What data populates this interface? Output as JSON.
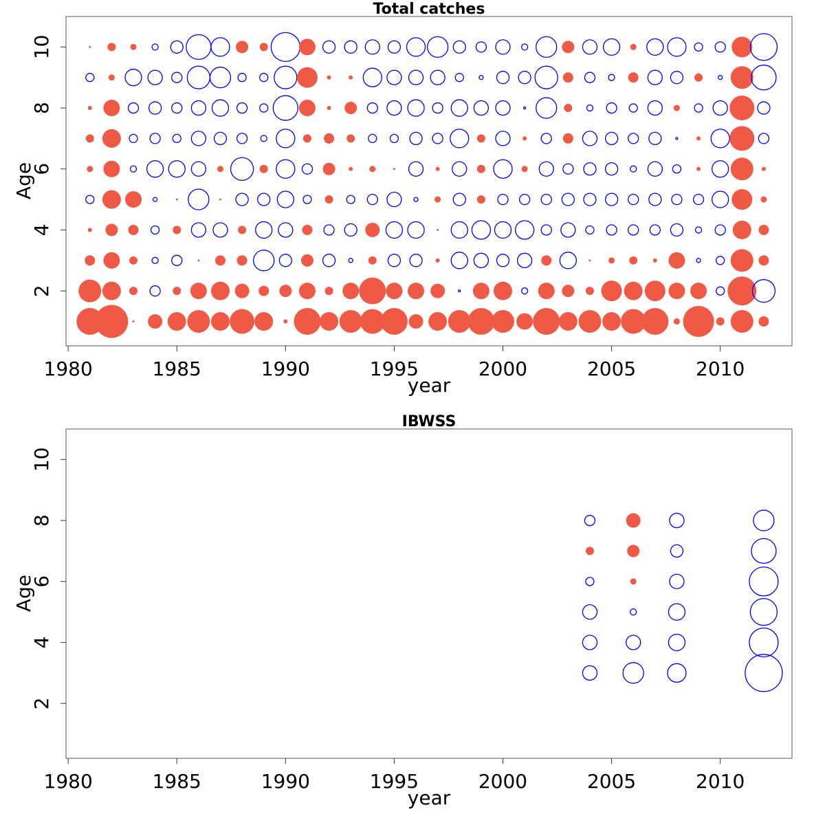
{
  "chart_data": [
    {
      "type": "bubble",
      "title": "Total catches",
      "xlabel": "year",
      "ylabel": "Age",
      "xlim": [
        1979.9,
        2013.3
      ],
      "ylim": [
        0.2,
        11.0
      ],
      "x_ticks": [
        1980,
        1985,
        1990,
        1995,
        2000,
        2005,
        2010
      ],
      "y_ticks": [
        2,
        4,
        6,
        8,
        10
      ],
      "grid": false,
      "positive_color": "#ee5a45",
      "negative_color": "#0000ff",
      "ages": [
        1,
        2,
        3,
        4,
        5,
        6,
        7,
        8,
        9,
        10
      ],
      "years": [
        1981,
        1982,
        1983,
        1984,
        1985,
        1986,
        1987,
        1988,
        1989,
        1990,
        1991,
        1992,
        1993,
        1994,
        1995,
        1996,
        1997,
        1998,
        1999,
        2000,
        2001,
        2002,
        2003,
        2004,
        2005,
        2006,
        2007,
        2008,
        2009,
        2010,
        2011,
        2012
      ],
      "residuals": [
        [
          1.3,
          1.1,
          0.5,
          0.2,
          -0.4,
          0.3,
          0.4,
          0.2,
          -0.4,
          0.1
        ],
        [
          1.6,
          0.9,
          0.8,
          0.6,
          0.9,
          0.8,
          0.9,
          0.8,
          0.3,
          0.4
        ],
        [
          0.1,
          0.4,
          0.4,
          0.5,
          0.8,
          -0.3,
          -0.4,
          -0.5,
          -0.8,
          0.3
        ],
        [
          0.7,
          -0.5,
          -0.3,
          -0.4,
          -0.2,
          -0.8,
          -0.5,
          -0.6,
          -0.7,
          -0.3
        ],
        [
          0.9,
          0.4,
          -0.5,
          0.4,
          0.1,
          -0.8,
          -0.4,
          -0.5,
          -0.5,
          -0.6
        ],
        [
          1.1,
          0.8,
          0.1,
          -0.7,
          -1.0,
          -0.7,
          -0.7,
          -0.7,
          -1.1,
          -1.2
        ],
        [
          0.9,
          0.9,
          0.5,
          -0.7,
          0.1,
          0.3,
          -0.6,
          -0.8,
          -1.0,
          -0.9
        ],
        [
          1.2,
          0.7,
          0.5,
          0.4,
          -0.6,
          -1.1,
          -0.5,
          -0.5,
          -0.4,
          0.6
        ],
        [
          0.9,
          0.5,
          -1.0,
          -0.8,
          -0.6,
          0.4,
          -0.3,
          -0.4,
          -0.4,
          0.4
        ],
        [
          0.2,
          0.6,
          -0.6,
          -0.7,
          -0.8,
          -0.9,
          -0.9,
          -1.2,
          -1.1,
          -1.4
        ],
        [
          1.3,
          0.8,
          0.6,
          0.5,
          -0.4,
          -0.5,
          0.4,
          0.8,
          1.0,
          0.8
        ],
        [
          0.9,
          0.4,
          -0.6,
          -0.5,
          0.4,
          0.6,
          0.5,
          0.2,
          0.2,
          -0.6
        ],
        [
          1.1,
          0.8,
          -0.2,
          -0.6,
          -0.4,
          0.2,
          0.4,
          0.6,
          0.2,
          -0.6
        ],
        [
          1.2,
          1.3,
          0.4,
          0.7,
          -0.5,
          0.3,
          -0.4,
          -0.5,
          -0.9,
          -0.7
        ],
        [
          1.3,
          0.8,
          -0.6,
          -0.8,
          -0.7,
          0.1,
          -0.4,
          -0.7,
          -0.7,
          -0.6
        ],
        [
          0.7,
          0.8,
          -0.6,
          -0.8,
          -0.2,
          -0.7,
          -0.6,
          -0.8,
          -0.7,
          -0.9
        ],
        [
          0.9,
          0.7,
          0.2,
          0.1,
          0.3,
          0.2,
          -0.5,
          -0.5,
          -0.7,
          -1.0
        ],
        [
          1.1,
          -0.1,
          -0.8,
          -0.8,
          -0.6,
          -0.7,
          -0.9,
          -0.8,
          -0.4,
          -0.6
        ],
        [
          1.3,
          0.8,
          -0.7,
          -0.9,
          0.4,
          0.4,
          0.4,
          -0.7,
          -0.2,
          -0.5
        ],
        [
          1.1,
          0.9,
          -0.6,
          -0.8,
          -0.5,
          -0.9,
          -0.7,
          -0.7,
          -0.6,
          -0.7
        ],
        [
          0.8,
          -0.3,
          -0.7,
          -0.9,
          -0.5,
          0.3,
          0.2,
          -0.1,
          -0.6,
          -0.3
        ],
        [
          1.3,
          0.8,
          0.5,
          -0.5,
          -0.5,
          -0.7,
          -0.5,
          -1.0,
          -1.1,
          -1.0
        ],
        [
          0.9,
          0.6,
          -0.8,
          -0.7,
          -0.6,
          -0.5,
          0.5,
          0.4,
          0.5,
          0.6
        ],
        [
          1.1,
          0.4,
          0.1,
          -0.4,
          -0.6,
          -0.6,
          -0.7,
          -0.3,
          -0.5,
          -0.7
        ],
        [
          0.9,
          1.0,
          0.3,
          -0.5,
          -0.6,
          -0.6,
          -0.6,
          -0.5,
          -0.3,
          -0.8
        ],
        [
          1.2,
          0.9,
          0.4,
          -0.5,
          -0.5,
          -0.3,
          -0.5,
          -0.4,
          0.5,
          0.3
        ],
        [
          1.3,
          1.0,
          0.2,
          -0.5,
          -0.6,
          -0.7,
          -0.6,
          -0.7,
          -0.7,
          -0.8
        ],
        [
          0.3,
          0.8,
          0.8,
          -0.6,
          -0.5,
          -0.4,
          -0.1,
          0.3,
          -0.6,
          -0.9
        ],
        [
          1.5,
          0.8,
          -0.2,
          -0.3,
          -0.5,
          0.2,
          0.2,
          -0.4,
          0.4,
          -0.4
        ],
        [
          0.4,
          -0.4,
          -0.4,
          -0.5,
          -0.8,
          -0.8,
          -0.9,
          -0.7,
          -0.2,
          -0.5
        ],
        [
          1.1,
          1.4,
          1.1,
          0.9,
          1.0,
          1.1,
          1.2,
          1.2,
          1.1,
          1.0
        ],
        [
          0.5,
          -1.1,
          0.5,
          0.5,
          0.3,
          0.2,
          -0.5,
          -0.6,
          -1.2,
          -1.3
        ]
      ]
    },
    {
      "type": "bubble",
      "title": "IBWSS",
      "xlabel": "year",
      "ylabel": "Age",
      "xlim": [
        1979.9,
        2013.3
      ],
      "ylim": [
        0.2,
        11.0
      ],
      "x_ticks": [
        1980,
        1985,
        1990,
        1995,
        2000,
        2005,
        2010
      ],
      "y_ticks": [
        2,
        4,
        6,
        8,
        10
      ],
      "grid": false,
      "positive_color": "#ee5a45",
      "negative_color": "#0000ff",
      "ages": [
        3,
        4,
        5,
        6,
        7,
        8
      ],
      "years": [
        2004,
        2006,
        2008,
        2012
      ],
      "residuals": [
        [
          -0.7,
          -0.7,
          -0.7,
          -0.4,
          0.4,
          -0.5
        ],
        [
          -1.0,
          -0.7,
          -0.3,
          0.3,
          0.6,
          0.7
        ],
        [
          -0.9,
          -0.8,
          -0.8,
          -0.7,
          -0.6,
          -0.7
        ],
        [
          -1.8,
          -1.4,
          -1.3,
          -1.4,
          -1.2,
          -1.0
        ]
      ]
    }
  ]
}
